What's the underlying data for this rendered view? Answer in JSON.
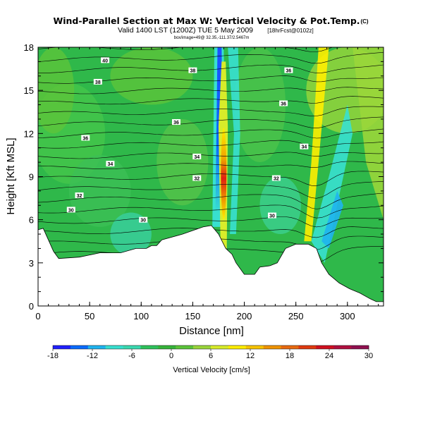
{
  "header": {
    "title": "Wind-Parallel Section at Max W: Vertical Velocity & Pot.Temp.",
    "copyright": "(C)",
    "valid_line": "Valid 1400 LST (1200Z) TUE 5 May 2009",
    "forecast_tag": "[18hrFcst@0102z]",
    "small_line": "box/image=49@ 32.35,-111.37/2.5467m"
  },
  "chart_data": {
    "type": "heatmap",
    "xlabel": "Distance [nm]",
    "ylabel": "Height [Kft MSL]",
    "xlim": [
      0,
      335
    ],
    "ylim": [
      0,
      18
    ],
    "x_ticks": [
      "0",
      "50",
      "100",
      "150",
      "200",
      "250",
      "300"
    ],
    "x_tick_values": [
      0,
      50,
      100,
      150,
      200,
      250,
      300
    ],
    "y_ticks": [
      "0",
      "3",
      "6",
      "9",
      "12",
      "15",
      "18"
    ],
    "y_tick_values": [
      0,
      3,
      6,
      9,
      12,
      15,
      18
    ],
    "colorbar": {
      "label": "Vertical Velocity [cm/s]",
      "range": [
        -18,
        30
      ],
      "tick_labels": [
        "-18",
        "-12",
        "-6",
        "0",
        "6",
        "12",
        "18",
        "24",
        "30"
      ],
      "tick_values": [
        -18,
        -12,
        -6,
        0,
        6,
        12,
        18,
        24,
        30
      ],
      "colors": [
        "#2020ff",
        "#0a6cff",
        "#1fb4f0",
        "#38e0d0",
        "#3ad9b0",
        "#2fc25c",
        "#36b43a",
        "#5cc43a",
        "#9ad63a",
        "#d8ec2a",
        "#ffee00",
        "#f8c400",
        "#f09400",
        "#e86a10",
        "#e03a10",
        "#d01020",
        "#b01040",
        "#901050"
      ]
    },
    "terrain_profile": [
      [
        0,
        5.3
      ],
      [
        5,
        5.4
      ],
      [
        10,
        4.6
      ],
      [
        15,
        3.8
      ],
      [
        20,
        3.3
      ],
      [
        40,
        3.4
      ],
      [
        60,
        3.7
      ],
      [
        80,
        3.7
      ],
      [
        95,
        4
      ],
      [
        105,
        4
      ],
      [
        110,
        4.2
      ],
      [
        115,
        4.2
      ],
      [
        120,
        4.6
      ],
      [
        140,
        5.0
      ],
      [
        160,
        5.5
      ],
      [
        168,
        5.6
      ],
      [
        175,
        5.0
      ],
      [
        182,
        4.0
      ],
      [
        188,
        3.6
      ],
      [
        192,
        3.0
      ],
      [
        200,
        2.2
      ],
      [
        210,
        2.2
      ],
      [
        215,
        2.7
      ],
      [
        225,
        2.8
      ],
      [
        232,
        3.0
      ],
      [
        240,
        4.0
      ],
      [
        250,
        4.3
      ],
      [
        262,
        4.3
      ],
      [
        270,
        4.0
      ],
      [
        275,
        3.0
      ],
      [
        282,
        2.2
      ],
      [
        292,
        1.6
      ],
      [
        302,
        1.2
      ],
      [
        312,
        0.9
      ],
      [
        322,
        0.5
      ],
      [
        328,
        0.3
      ],
      [
        335,
        0.3
      ]
    ],
    "isentropes": [
      {
        "label": "40",
        "x": 65,
        "y": 17.1
      },
      {
        "label": "38",
        "x": 150,
        "y": 16.4
      },
      {
        "label": "38",
        "x": 58,
        "y": 15.6
      },
      {
        "label": "36",
        "x": 243,
        "y": 16.4
      },
      {
        "label": "36",
        "x": 238,
        "y": 14.1
      },
      {
        "label": "36",
        "x": 134,
        "y": 12.8
      },
      {
        "label": "36",
        "x": 46,
        "y": 11.7
      },
      {
        "label": "34",
        "x": 258,
        "y": 11.1
      },
      {
        "label": "34",
        "x": 154,
        "y": 10.4
      },
      {
        "label": "34",
        "x": 70,
        "y": 9.9
      },
      {
        "label": "32",
        "x": 154,
        "y": 8.9
      },
      {
        "label": "32",
        "x": 231,
        "y": 8.9
      },
      {
        "label": "32",
        "x": 40,
        "y": 7.7
      },
      {
        "label": "30",
        "x": 32,
        "y": 6.7
      },
      {
        "label": "30",
        "x": 102,
        "y": 6.0
      },
      {
        "label": "30",
        "x": 227,
        "y": 6.3
      }
    ],
    "updraft_core": {
      "x": 180,
      "y_range": [
        4,
        17
      ],
      "peak_value": 26
    },
    "downdraft_core": {
      "x": 175,
      "y_range": [
        5.5,
        18
      ],
      "min_value": -16
    }
  }
}
